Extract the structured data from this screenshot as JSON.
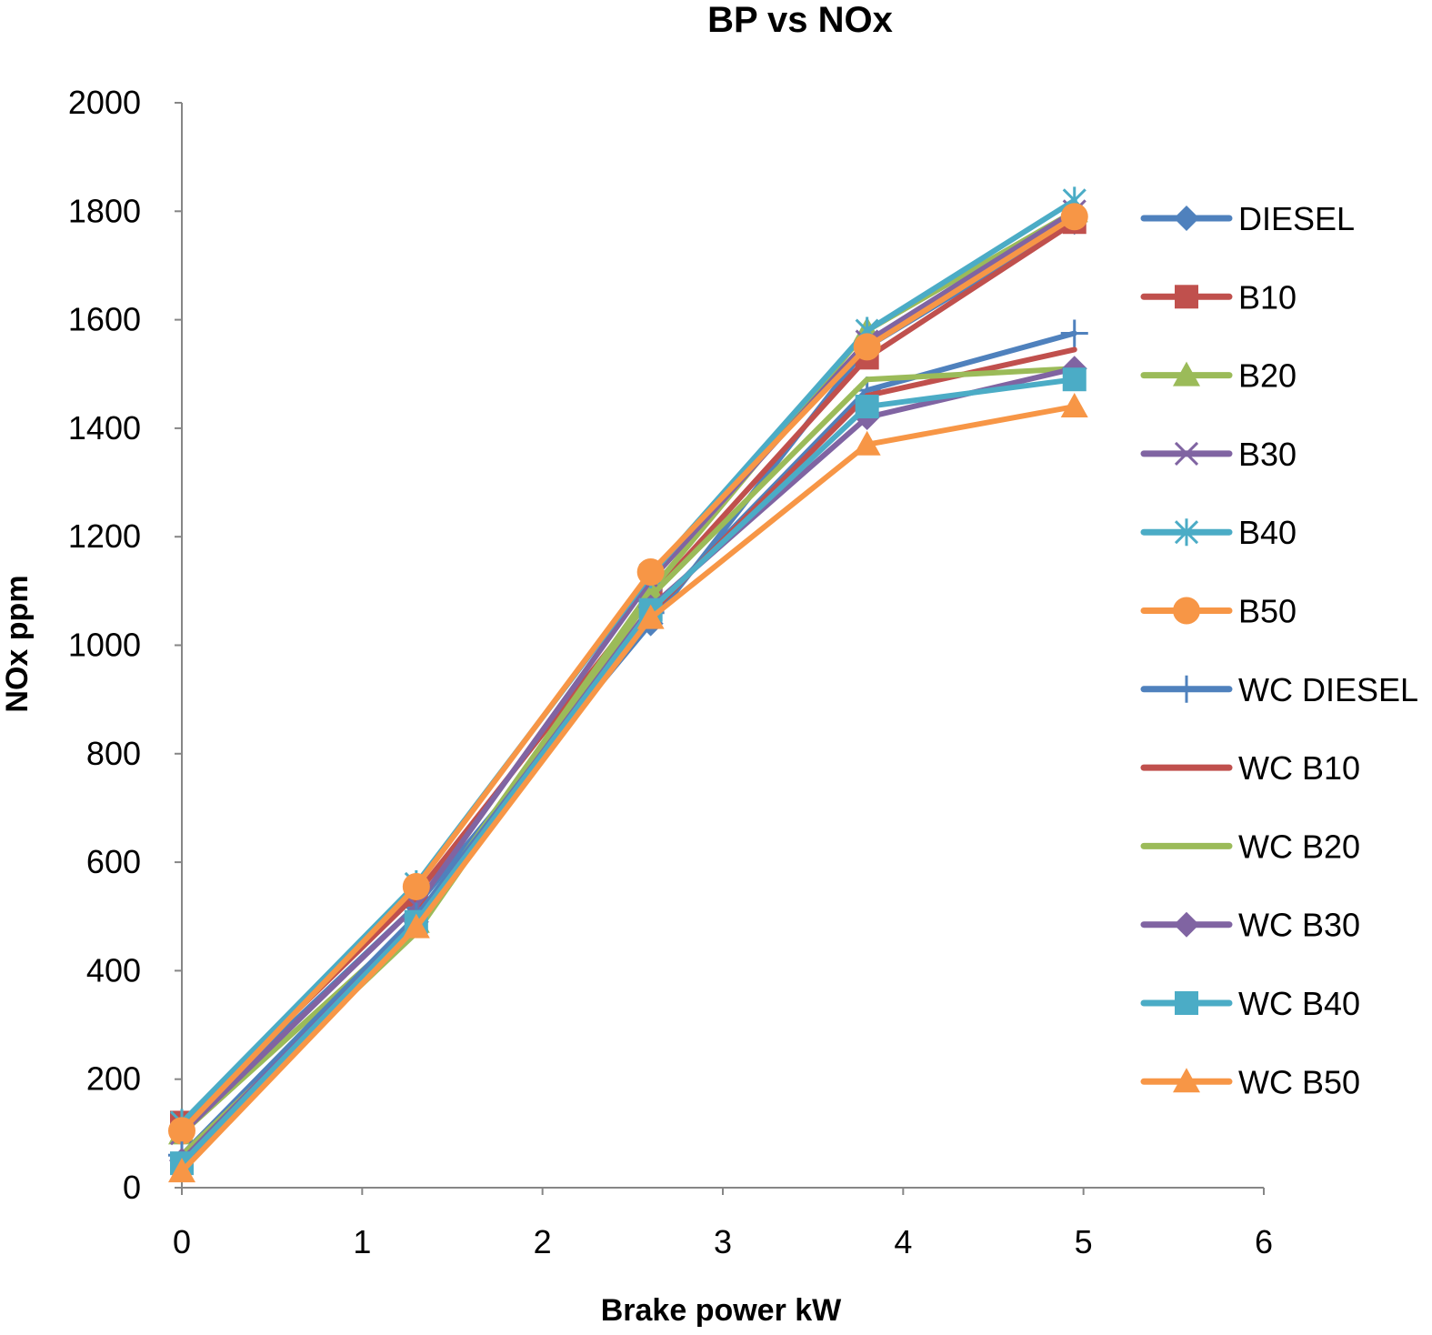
{
  "chart_data": {
    "type": "line",
    "title": "BP vs NOx",
    "xlabel": "Brake power kW",
    "ylabel": "NOx ppm",
    "xlim": [
      0,
      6
    ],
    "ylim": [
      0,
      2000
    ],
    "xticks": [
      "0",
      "1",
      "2",
      "3",
      "4",
      "5",
      "6"
    ],
    "yticks": [
      "0",
      "200",
      "400",
      "600",
      "800",
      "1000",
      "1200",
      "1400",
      "1600",
      "1800",
      "2000"
    ],
    "grid": false,
    "legend_position": "right",
    "x": [
      0,
      1.3,
      2.6,
      3.8,
      4.95
    ],
    "series": [
      {
        "name": "DIESEL",
        "color": "#4F81BD",
        "marker": "diamond",
        "values": [
          110,
          520,
          1040,
          1550,
          1780
        ]
      },
      {
        "name": "B10",
        "color": "#C0504D",
        "marker": "square",
        "values": [
          120,
          540,
          1090,
          1530,
          1780
        ]
      },
      {
        "name": "B20",
        "color": "#9BBB59",
        "marker": "triangle",
        "values": [
          100,
          490,
          1100,
          1580,
          1800
        ]
      },
      {
        "name": "B30",
        "color": "#8064A2",
        "marker": "x",
        "values": [
          100,
          520,
          1120,
          1560,
          1800
        ]
      },
      {
        "name": "B40",
        "color": "#4BACC6",
        "marker": "star",
        "values": [
          120,
          560,
          1130,
          1580,
          1820
        ]
      },
      {
        "name": "B50",
        "color": "#F79646",
        "marker": "circle",
        "values": [
          105,
          555,
          1135,
          1550,
          1790
        ]
      },
      {
        "name": "WC DIESEL",
        "color": "#4F81BD",
        "marker": "plus",
        "values": [
          60,
          500,
          1060,
          1470,
          1575
        ]
      },
      {
        "name": "WC B10",
        "color": "#C0504D",
        "marker": "none",
        "values": [
          40,
          490,
          1060,
          1460,
          1545
        ]
      },
      {
        "name": "WC B20",
        "color": "#9BBB59",
        "marker": "none",
        "values": [
          60,
          470,
          1090,
          1490,
          1510
        ]
      },
      {
        "name": "WC B30",
        "color": "#8064A2",
        "marker": "diamond",
        "values": [
          50,
          490,
          1070,
          1420,
          1510
        ]
      },
      {
        "name": "WC B40",
        "color": "#4BACC6",
        "marker": "square",
        "values": [
          45,
          490,
          1065,
          1440,
          1490
        ]
      },
      {
        "name": "WC B50",
        "color": "#F79646",
        "marker": "triangle",
        "values": [
          30,
          480,
          1050,
          1370,
          1440
        ]
      }
    ]
  }
}
